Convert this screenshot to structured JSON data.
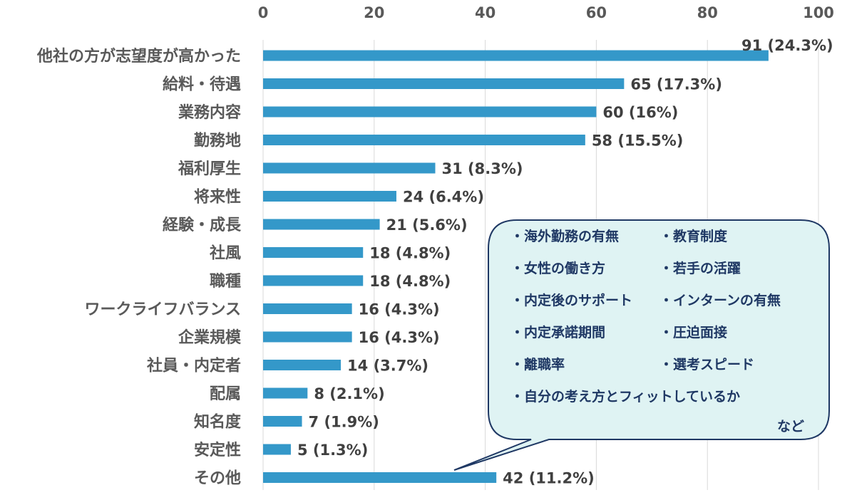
{
  "chart_data": {
    "type": "bar",
    "orientation": "horizontal",
    "title": "",
    "xlabel": "",
    "ylabel": "",
    "xlim": [
      0,
      100
    ],
    "x_ticks": [
      0,
      20,
      40,
      60,
      80,
      100
    ],
    "x_tick_labels": [
      "0",
      "20",
      "40",
      "60",
      "80",
      "100"
    ],
    "grid": true,
    "bar_color": "#3498c9",
    "categories": [
      "他社の方が志望度が高かった",
      "給料・待遇",
      "業務内容",
      "勤務地",
      "福利厚生",
      "将来性",
      "経験・成長",
      "社風",
      "職種",
      "ワークライフバランス",
      "企業規模",
      "社員・内定者",
      "配属",
      "知名度",
      "安定性",
      "その他"
    ],
    "values": [
      91,
      65,
      60,
      58,
      31,
      24,
      21,
      18,
      18,
      16,
      16,
      14,
      8,
      7,
      5,
      42
    ],
    "data_labels": [
      "91 (24.3%)",
      "65 (17.3%)",
      "60 (16%)",
      "58 (15.5%)",
      "31 (8.3%)",
      "24 (6.4%)",
      "21 (5.6%)",
      "18 (4.8%)",
      "18 (4.8%)",
      "16 (4.3%)",
      "16 (4.3%)",
      "14 (3.7%)",
      "8 (2.1%)",
      "7 (1.9%)",
      "5 (1.3%)",
      "42 (11.2%)"
    ],
    "callout": {
      "target_category": "その他",
      "fill_color": "#dff3f3",
      "border_color": "#1f3864",
      "text_color": "#1f3864",
      "items": [
        "・海外勤務の有無",
        "・教育制度",
        "・女性の働き方",
        "・若手の活躍",
        "・内定後のサポート",
        "・インターンの有無",
        "・内定承諾期間",
        "・圧迫面接",
        "・離職率",
        "・選考スピード",
        "・自分の考え方とフィットしているか"
      ],
      "footer": "など"
    }
  }
}
